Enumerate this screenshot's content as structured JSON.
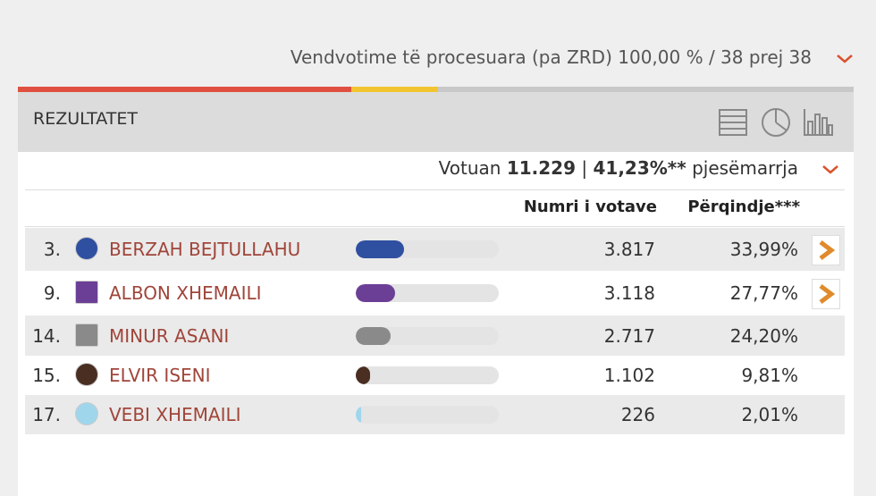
{
  "header": {
    "processed": "Vendvotime të procesuara (pa ZRD) 100,00 % / 38 prej 38",
    "title": "REZULTATET"
  },
  "turnout": {
    "label": "Votuan",
    "voters": "11.229",
    "separator": "|",
    "percent": "41,23%**",
    "suffix": "pjesëmarrja"
  },
  "table": {
    "columns": [
      "Numri i votave",
      "Përqindje***"
    ],
    "rows": [
      {
        "rank": "3.",
        "name": "BERZAH BEJTULLAHU",
        "votes": "3.817",
        "percent": {
          "value": 33.99,
          "label": "33,99%"
        },
        "color": "#2f4fa0",
        "details": true
      },
      {
        "rank": "9.",
        "name": "ALBON XHEMAILI",
        "votes": "3.118",
        "percent": {
          "value": 27.77,
          "label": "27,77%"
        },
        "color": "#6b3f96",
        "details": true
      },
      {
        "rank": "14.",
        "name": "MINUR ASANI",
        "votes": "2.717",
        "percent": {
          "value": 24.2,
          "label": "24,20%"
        },
        "color": "#8a8a8a",
        "details": false
      },
      {
        "rank": "15.",
        "name": "ELVIR ISENI",
        "votes": "1.102",
        "percent": {
          "value": 9.81,
          "label": "9,81%"
        },
        "color": "#4a2e22",
        "details": false
      },
      {
        "rank": "17.",
        "name": "VEBI XHEMAILI",
        "votes": "226",
        "percent": {
          "value": 2.01,
          "label": "2,01%"
        },
        "color": "#9fd6ec",
        "details": false
      }
    ]
  }
}
